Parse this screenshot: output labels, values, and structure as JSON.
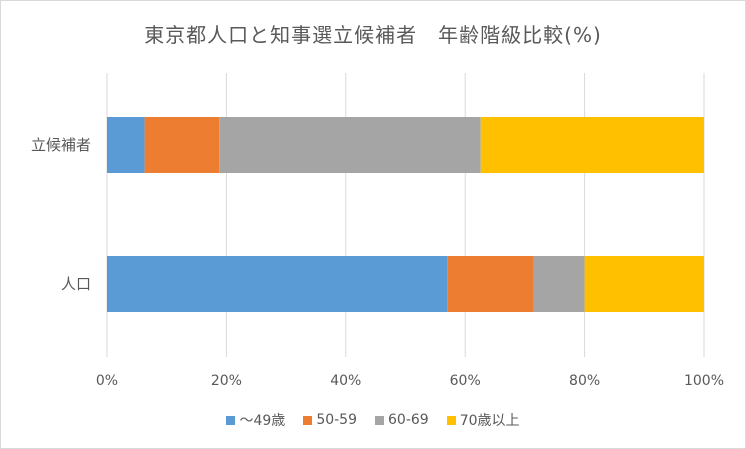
{
  "chart_data": {
    "type": "bar",
    "orientation": "horizontal",
    "stacked": "percent",
    "title": "東京都人口と知事選立候補者　年齢階級比較(%)",
    "categories": [
      "立候補者",
      "人口"
    ],
    "series": [
      {
        "name": "～49歳",
        "color": "#5b9bd5",
        "values": [
          6.3,
          57.0
        ]
      },
      {
        "name": "50-59",
        "color": "#ed7d31",
        "values": [
          12.5,
          14.5
        ]
      },
      {
        "name": "60-69",
        "color": "#a5a5a5",
        "values": [
          43.8,
          8.5
        ]
      },
      {
        "name": "70歳以上",
        "color": "#ffc000",
        "values": [
          37.4,
          20.0
        ]
      }
    ],
    "x_ticks": [
      "0%",
      "20%",
      "40%",
      "60%",
      "80%",
      "100%"
    ],
    "xlim": [
      0,
      100
    ],
    "grid": true,
    "legend_position": "bottom"
  }
}
